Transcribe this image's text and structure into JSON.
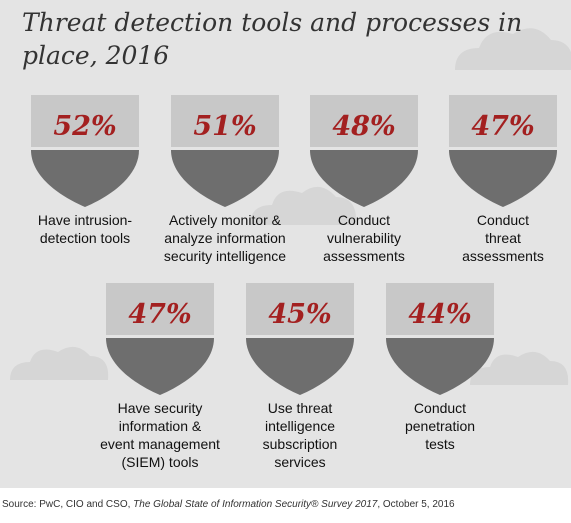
{
  "chart_data": {
    "type": "table",
    "title": "Threat detection tools and processes in place, 2016",
    "items": [
      {
        "value": 52,
        "value_label": "52%",
        "label": "Have intrusion-\ndetection tools"
      },
      {
        "value": 51,
        "value_label": "51%",
        "label": "Actively monitor &\nanalyze information\nsecurity intelligence"
      },
      {
        "value": 48,
        "value_label": "48%",
        "label": "Conduct\nvulnerability\nassessments"
      },
      {
        "value": 47,
        "value_label": "47%",
        "label": "Conduct\nthreat\nassessments"
      },
      {
        "value": 47,
        "value_label": "47%",
        "label": "Have security\ninformation &\nevent management\n(SIEM) tools"
      },
      {
        "value": 45,
        "value_label": "45%",
        "label": "Use threat\nintelligence\nsubscription\nservices"
      },
      {
        "value": 44,
        "value_label": "44%",
        "label": "Conduct\npenetration\ntests"
      }
    ]
  },
  "source": {
    "prefix": "Source: PwC, CIO and CSO, ",
    "publication": "The Global State of Information Security® Survey 2017",
    "suffix": ", October 5, 2016"
  },
  "colors": {
    "shield_top": "#c8c8c8",
    "shield_bottom": "#6e6e6e",
    "value_text": "#a32020",
    "background": "#e4e4e4"
  }
}
